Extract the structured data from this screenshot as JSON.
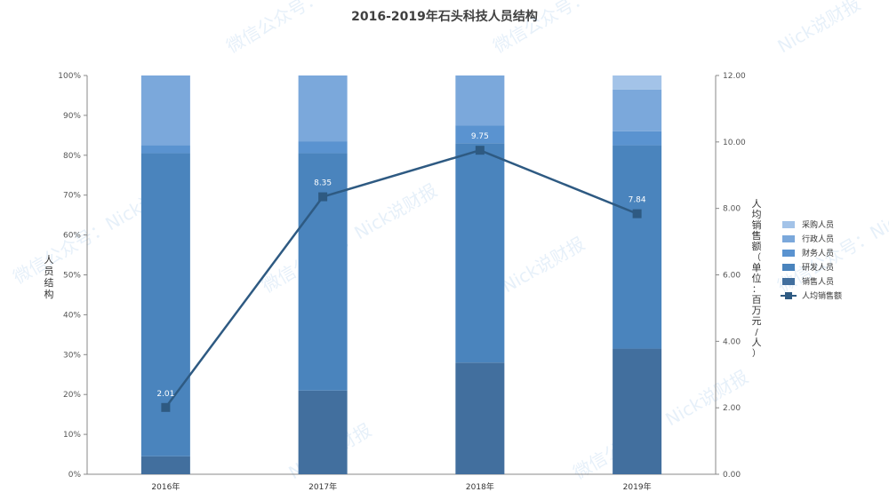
{
  "title": "2016-2019年石头科技人员结构",
  "left_axis_label": "人员结构",
  "right_axis_label": "人均销售额（单位：百万元/人）",
  "watermarks": [
    "微信公众号：Nick说财报",
    "Nick说财报",
    "微信公众号：Nick说财报"
  ],
  "chart_data": {
    "type": "bar",
    "stacked": true,
    "categories": [
      "2016年",
      "2017年",
      "2018年",
      "2019年"
    ],
    "y_left": {
      "min": 0,
      "max": 100,
      "step": 10,
      "format": "percent",
      "ticks": [
        "0%",
        "10%",
        "20%",
        "30%",
        "40%",
        "50%",
        "60%",
        "70%",
        "80%",
        "90%",
        "100%"
      ]
    },
    "y_right": {
      "min": 0,
      "max": 12,
      "step": 2,
      "ticks": [
        "0.00",
        "2.00",
        "4.00",
        "6.00",
        "8.00",
        "10.00",
        "12.00"
      ]
    },
    "series": [
      {
        "name": "销售人员",
        "color": "#426f9e",
        "values": [
          4.5,
          21,
          28,
          31.5
        ]
      },
      {
        "name": "研发人员",
        "color": "#4a84bd",
        "values": [
          76,
          59.5,
          55,
          51
        ]
      },
      {
        "name": "财务人员",
        "color": "#5a93d0",
        "values": [
          2,
          3,
          4.5,
          3.5
        ]
      },
      {
        "name": "行政人员",
        "color": "#7ba8db",
        "values": [
          17.5,
          16.5,
          12.5,
          10.5
        ]
      },
      {
        "name": "采购人员",
        "color": "#a3c3e8",
        "values": [
          0,
          0,
          0,
          3.5
        ]
      }
    ],
    "line": {
      "name": "人均销售额",
      "color": "#2e5a82",
      "axis": "right",
      "values": [
        2.01,
        8.35,
        9.75,
        7.84
      ],
      "labels": [
        "2.01",
        "8.35",
        "9.75",
        "7.84"
      ]
    },
    "legend": [
      "采购人员",
      "行政人员",
      "财务人员",
      "研发人员",
      "销售人员",
      "人均销售额"
    ],
    "legend_position": "right"
  }
}
